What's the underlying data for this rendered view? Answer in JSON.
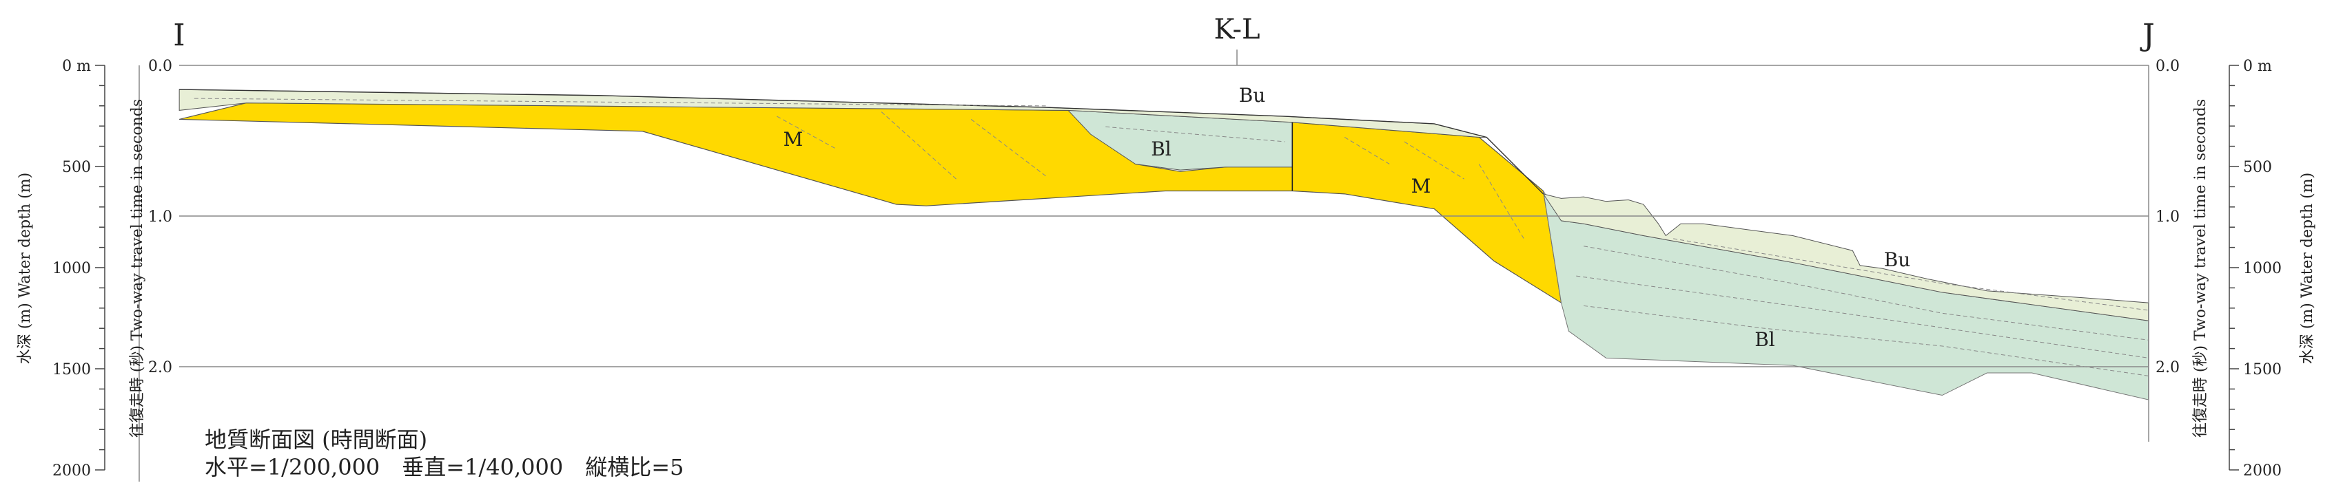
{
  "markers": {
    "left": "I",
    "right": "J",
    "center": "K-L"
  },
  "left_axes": {
    "depth_label": "水深 (m) Water depth (m)",
    "depth_ticks": [
      "0 m",
      "500",
      "1000",
      "1500",
      "2000"
    ],
    "time_label": "往復走時 (秒) Two-way travel time in seconds",
    "time_ticks": [
      "0.0",
      "1.0",
      "2.0"
    ]
  },
  "right_axes": {
    "depth_label": "水深 (m) Water depth (m)",
    "depth_ticks": [
      "0 m",
      "500",
      "1000",
      "1500",
      "2000"
    ],
    "time_label": "往復走時 (秒) Two-way travel time in seconds",
    "time_ticks": [
      "0.0",
      "1.0",
      "2.0"
    ]
  },
  "units": [
    "Bu",
    "Bl",
    "M",
    "M",
    "Bu",
    "Bl"
  ],
  "caption": [
    "地質断面図 (時間断面)",
    "水平=1/200,000　垂直=1/40,000　縦横比=5"
  ]
}
